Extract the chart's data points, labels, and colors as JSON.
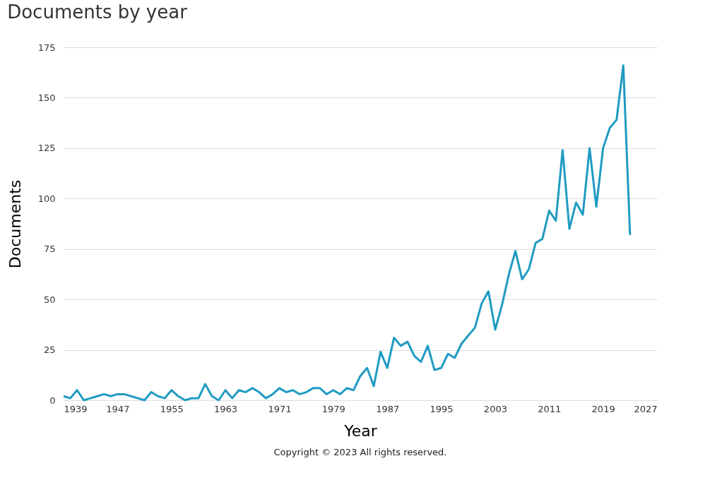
{
  "chart_data": {
    "type": "line",
    "title": "Documents by year",
    "xlabel": "Year",
    "ylabel": "Documents",
    "annotations": [
      "Copyright © 2023 All rights reserved."
    ],
    "x": [
      1939,
      1940,
      1941,
      1942,
      1943,
      1944,
      1945,
      1946,
      1947,
      1948,
      1949,
      1950,
      1951,
      1952,
      1953,
      1954,
      1955,
      1956,
      1957,
      1958,
      1959,
      1960,
      1961,
      1962,
      1963,
      1964,
      1965,
      1966,
      1967,
      1968,
      1969,
      1970,
      1971,
      1972,
      1973,
      1974,
      1975,
      1976,
      1977,
      1978,
      1979,
      1980,
      1981,
      1982,
      1983,
      1984,
      1985,
      1986,
      1987,
      1988,
      1989,
      1990,
      1991,
      1992,
      1993,
      1994,
      1995,
      1996,
      1997,
      1998,
      1999,
      2000,
      2001,
      2002,
      2003,
      2004,
      2005,
      2006,
      2007,
      2008,
      2009,
      2010,
      2011,
      2012,
      2013,
      2014,
      2015,
      2016,
      2017,
      2018,
      2019,
      2020,
      2021,
      2022,
      2023
    ],
    "series": [
      {
        "color": "#1f9bc2",
        "values": [
          2,
          1,
          5,
          0,
          1,
          2,
          3,
          2,
          3,
          3,
          2,
          1,
          0,
          4,
          2,
          1,
          5,
          2,
          0,
          1,
          1,
          8,
          2,
          0,
          5,
          1,
          5,
          4,
          6,
          4,
          1,
          3,
          6,
          4,
          5,
          3,
          4,
          6,
          6,
          3,
          5,
          3,
          6,
          5,
          12,
          16,
          7,
          24,
          16,
          31,
          27,
          29,
          22,
          19,
          27,
          15,
          16,
          23,
          21,
          28,
          32,
          36,
          48,
          54,
          35,
          47,
          62,
          74,
          60,
          65,
          78,
          80,
          94,
          89,
          124,
          85,
          98,
          92,
          125,
          96,
          125,
          135,
          139,
          166,
          82
        ]
      }
    ],
    "xlim": [
      1939,
      2027
    ],
    "xticks": [
      1939,
      1947,
      1955,
      1963,
      1971,
      1979,
      1987,
      1995,
      2003,
      2011,
      2019,
      2027
    ],
    "ylim": [
      0,
      175
    ],
    "yticks": [
      0,
      25,
      50,
      75,
      100,
      125,
      150,
      175
    ],
    "grid": "y",
    "marker": "none",
    "line_style": "solid"
  }
}
